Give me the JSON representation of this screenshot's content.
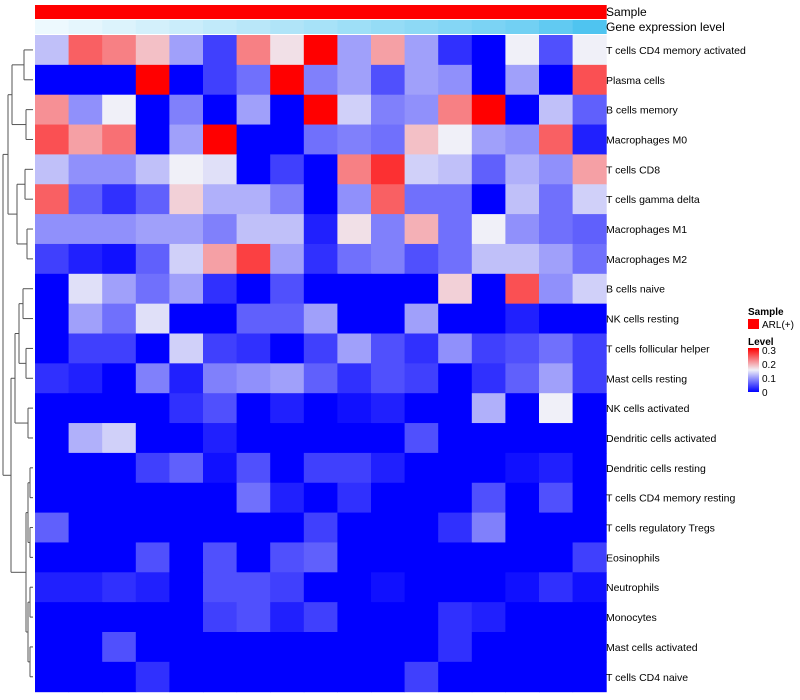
{
  "chart_data": {
    "type": "heatmap",
    "title": "",
    "annotations": {
      "sample_label": "Sample",
      "gene_label": "Gene expression level"
    },
    "rows": [
      "T cells CD4 memory activated",
      "Plasma cells",
      "B cells memory",
      "Macrophages M0",
      "T cells CD8",
      "T cells gamma delta",
      "Macrophages M1",
      "Macrophages M2",
      "B cells naive",
      "NK cells resting",
      "T cells follicular helper",
      "Mast cells resting",
      "NK cells activated",
      "Dendritic cells activated",
      "Dendritic cells resting",
      "T cells CD4 memory resting",
      "T cells regulatory  Tregs",
      "Eosinophils",
      "Neutrophils",
      "Monocytes",
      "Mast cells activated",
      "T cells CD4 naive"
    ],
    "n_columns": 17,
    "gene_expression_gradient": [
      0.1,
      0.15,
      0.2,
      0.25,
      0.3,
      0.35,
      0.4,
      0.45,
      0.5,
      0.55,
      0.6,
      0.65,
      0.7,
      0.75,
      0.8,
      0.9,
      1.0
    ],
    "values": [
      [
        0.12,
        0.24,
        0.22,
        0.18,
        0.1,
        0.04,
        0.22,
        0.16,
        0.3,
        0.1,
        0.2,
        0.1,
        0.03,
        0.0,
        0.15,
        0.05,
        0.15
      ],
      [
        0.0,
        0.0,
        0.0,
        0.3,
        0.0,
        0.04,
        0.07,
        0.3,
        0.08,
        0.1,
        0.05,
        0.1,
        0.09,
        0.0,
        0.1,
        0.0,
        0.25
      ],
      [
        0.21,
        0.09,
        0.15,
        0.0,
        0.08,
        0.0,
        0.1,
        0.0,
        0.3,
        0.13,
        0.08,
        0.09,
        0.22,
        0.3,
        0.0,
        0.12,
        0.06
      ],
      [
        0.25,
        0.2,
        0.23,
        0.0,
        0.1,
        0.3,
        0.0,
        0.0,
        0.07,
        0.08,
        0.07,
        0.18,
        0.15,
        0.1,
        0.09,
        0.24,
        0.02
      ],
      [
        0.12,
        0.09,
        0.09,
        0.12,
        0.15,
        0.14,
        0.0,
        0.04,
        0.0,
        0.22,
        0.27,
        0.13,
        0.12,
        0.06,
        0.11,
        0.09,
        0.2
      ],
      [
        0.24,
        0.06,
        0.03,
        0.06,
        0.17,
        0.11,
        0.11,
        0.08,
        0.0,
        0.09,
        0.24,
        0.07,
        0.07,
        0.0,
        0.12,
        0.07,
        0.13
      ],
      [
        0.09,
        0.09,
        0.09,
        0.1,
        0.1,
        0.08,
        0.12,
        0.12,
        0.02,
        0.16,
        0.08,
        0.19,
        0.07,
        0.15,
        0.09,
        0.07,
        0.06
      ],
      [
        0.04,
        0.02,
        0.01,
        0.06,
        0.13,
        0.2,
        0.26,
        0.1,
        0.03,
        0.07,
        0.08,
        0.05,
        0.07,
        0.12,
        0.12,
        0.1,
        0.07
      ],
      [
        0.0,
        0.14,
        0.1,
        0.07,
        0.1,
        0.03,
        0.0,
        0.05,
        0.0,
        0.0,
        0.0,
        0.0,
        0.17,
        0.0,
        0.25,
        0.09,
        0.13
      ],
      [
        0.0,
        0.1,
        0.07,
        0.14,
        0.0,
        0.0,
        0.06,
        0.06,
        0.1,
        0.0,
        0.0,
        0.1,
        0.0,
        0.0,
        0.02,
        0.0,
        0.0
      ],
      [
        0.0,
        0.04,
        0.04,
        0.0,
        0.13,
        0.04,
        0.03,
        0.0,
        0.04,
        0.1,
        0.05,
        0.03,
        0.09,
        0.04,
        0.05,
        0.07,
        0.04
      ],
      [
        0.03,
        0.02,
        0.0,
        0.08,
        0.02,
        0.08,
        0.09,
        0.1,
        0.06,
        0.03,
        0.05,
        0.04,
        0.0,
        0.03,
        0.06,
        0.1,
        0.04
      ],
      [
        0.0,
        0.0,
        0.0,
        0.0,
        0.03,
        0.05,
        0.0,
        0.02,
        0.0,
        0.01,
        0.02,
        0.0,
        0.0,
        0.11,
        0.0,
        0.15,
        0.0
      ],
      [
        0.0,
        0.11,
        0.13,
        0.0,
        0.0,
        0.02,
        0.0,
        0.0,
        0.0,
        0.0,
        0.0,
        0.05,
        0.0,
        0.0,
        0.0,
        0.0,
        0.0
      ],
      [
        0.0,
        0.0,
        0.0,
        0.04,
        0.06,
        0.01,
        0.05,
        0.0,
        0.04,
        0.04,
        0.02,
        0.0,
        0.0,
        0.0,
        0.01,
        0.02,
        0.0
      ],
      [
        0.0,
        0.0,
        0.0,
        0.0,
        0.0,
        0.0,
        0.07,
        0.02,
        0.0,
        0.03,
        0.0,
        0.0,
        0.0,
        0.05,
        0.0,
        0.05,
        0.0
      ],
      [
        0.06,
        0.0,
        0.0,
        0.0,
        0.0,
        0.0,
        0.0,
        0.0,
        0.04,
        0.0,
        0.0,
        0.0,
        0.03,
        0.08,
        0.0,
        0.0,
        0.0
      ],
      [
        0.0,
        0.0,
        0.0,
        0.05,
        0.0,
        0.05,
        0.0,
        0.05,
        0.06,
        0.0,
        0.0,
        0.0,
        0.0,
        0.0,
        0.0,
        0.0,
        0.04
      ],
      [
        0.02,
        0.02,
        0.03,
        0.02,
        0.0,
        0.05,
        0.05,
        0.04,
        0.0,
        0.0,
        0.01,
        0.0,
        0.0,
        0.0,
        0.01,
        0.03,
        0.01
      ],
      [
        0.0,
        0.0,
        0.0,
        0.0,
        0.0,
        0.04,
        0.05,
        0.02,
        0.04,
        0.0,
        0.0,
        0.0,
        0.03,
        0.02,
        0.0,
        0.0,
        0.0
      ],
      [
        0.0,
        0.0,
        0.05,
        0.0,
        0.0,
        0.0,
        0.0,
        0.0,
        0.0,
        0.0,
        0.0,
        0.0,
        0.03,
        0.0,
        0.0,
        0.0,
        0.0
      ],
      [
        0.0,
        0.0,
        0.0,
        0.03,
        0.0,
        0.0,
        0.0,
        0.0,
        0.0,
        0.0,
        0.0,
        0.04,
        0.0,
        0.0,
        0.0,
        0.0,
        0.0
      ]
    ],
    "color_scale": {
      "min": 0,
      "max": 0.3,
      "low": "#0000ff",
      "mid": "#f0f0f8",
      "high": "#ff0000"
    },
    "legend": {
      "sample_title": "Sample",
      "sample_entry": "ARL(+)",
      "sample_color": "#ff0000",
      "level_title": "Level",
      "ticks": [
        "0.3",
        "0.2",
        "0.1",
        "0"
      ]
    }
  },
  "colors": {
    "sample_bar": "#ff0000",
    "gene_low": "#ffffff",
    "gene_high": "#4fc4f0"
  }
}
